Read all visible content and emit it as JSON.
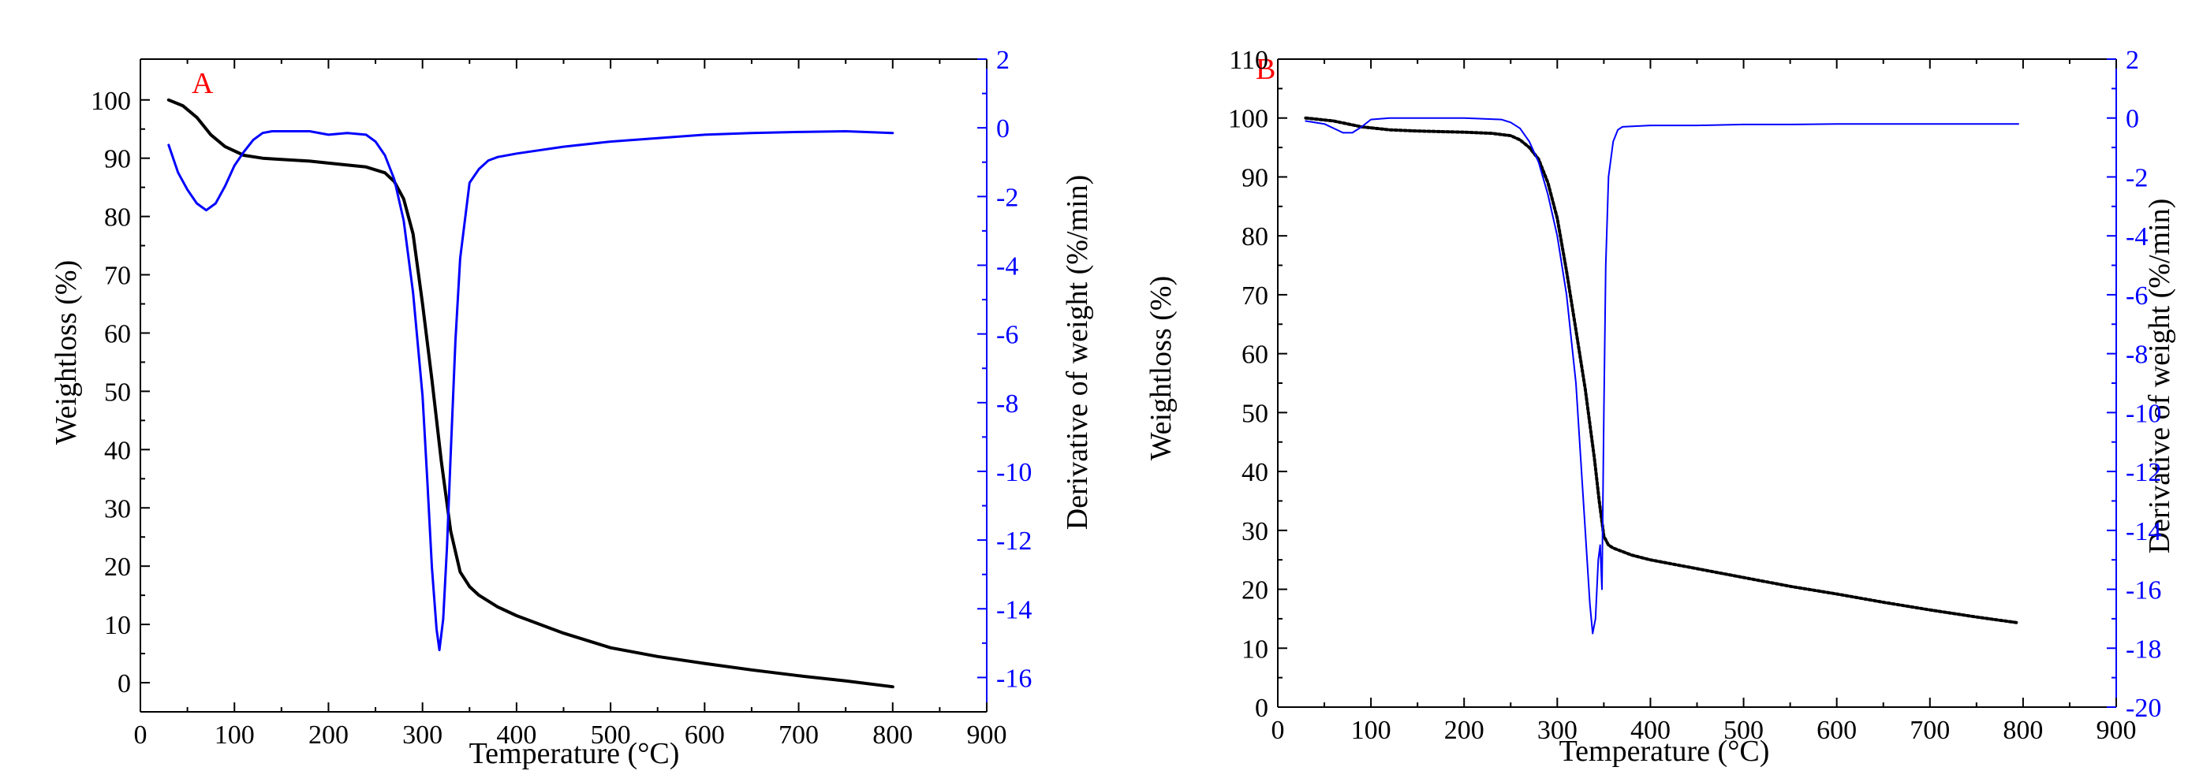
{
  "chart_data": [
    {
      "panel": "A",
      "type": "line",
      "xlabel": "Temperature (°C)",
      "ylabel": "Weightloss (%)",
      "y2label": "Derivative of weight (%/min)",
      "xlim": [
        0,
        900
      ],
      "ylim": [
        -5,
        107
      ],
      "y2lim": [
        -17,
        2
      ],
      "xticks": [
        0,
        100,
        200,
        300,
        400,
        500,
        600,
        700,
        800,
        900
      ],
      "yticks": [
        0,
        10,
        20,
        30,
        40,
        50,
        60,
        70,
        80,
        90,
        100
      ],
      "y2ticks": [
        2,
        0,
        -2,
        -4,
        -6,
        -8,
        -10,
        -12,
        -14,
        -16
      ],
      "colors": {
        "weight": "#000000",
        "derivative": "#0000ff",
        "letter": "#ff0000"
      },
      "series": [
        {
          "name": "Weightloss (%)",
          "axis": "left",
          "x": [
            30,
            45,
            60,
            75,
            90,
            110,
            130,
            150,
            180,
            210,
            240,
            260,
            270,
            280,
            290,
            300,
            310,
            320,
            330,
            340,
            350,
            360,
            380,
            400,
            450,
            500,
            550,
            600,
            650,
            700,
            750,
            800
          ],
          "y": [
            100,
            99,
            97,
            94,
            92,
            90.5,
            90,
            89.8,
            89.5,
            89,
            88.5,
            87.5,
            86,
            83,
            77,
            65,
            52,
            38,
            26,
            19,
            16.5,
            15,
            13,
            11.5,
            8.5,
            6,
            4.5,
            3.3,
            2.2,
            1.2,
            0.3,
            -0.7
          ]
        },
        {
          "name": "Derivative of weight (%/min)",
          "axis": "right",
          "x": [
            30,
            40,
            50,
            60,
            70,
            80,
            90,
            100,
            110,
            120,
            130,
            140,
            160,
            180,
            200,
            220,
            240,
            250,
            260,
            270,
            280,
            290,
            300,
            305,
            310,
            315,
            318,
            322,
            326,
            330,
            335,
            340,
            350,
            360,
            370,
            380,
            400,
            450,
            500,
            550,
            600,
            650,
            700,
            750,
            800
          ],
          "y": [
            -0.5,
            -1.3,
            -1.8,
            -2.2,
            -2.4,
            -2.2,
            -1.7,
            -1.1,
            -0.7,
            -0.35,
            -0.15,
            -0.1,
            -0.1,
            -0.1,
            -0.2,
            -0.15,
            -0.2,
            -0.4,
            -0.8,
            -1.5,
            -2.7,
            -4.8,
            -7.8,
            -10.2,
            -12.8,
            -14.6,
            -15.2,
            -14.3,
            -12.2,
            -9.5,
            -6.2,
            -3.8,
            -1.6,
            -1.2,
            -0.95,
            -0.85,
            -0.75,
            -0.55,
            -0.4,
            -0.3,
            -0.2,
            -0.15,
            -0.12,
            -0.1,
            -0.15
          ]
        }
      ]
    },
    {
      "panel": "B",
      "type": "line",
      "xlabel": "Temperature (°C)",
      "ylabel": "Weightloss (%)",
      "y2label": "Derivative of weight (%/min)",
      "xlim": [
        0,
        900
      ],
      "ylim": [
        0,
        110
      ],
      "y2lim": [
        -20,
        2
      ],
      "xticks": [
        0,
        100,
        200,
        300,
        400,
        500,
        600,
        700,
        800,
        900
      ],
      "yticks": [
        0,
        10,
        20,
        30,
        40,
        50,
        60,
        70,
        80,
        90,
        100,
        110
      ],
      "y2ticks": [
        2,
        0,
        -2,
        -4,
        -6,
        -8,
        -10,
        -12,
        -14,
        -16,
        -18,
        -20
      ],
      "colors": {
        "weight": "#000000",
        "derivative": "#0000ff",
        "letter": "#ff0000"
      },
      "series": [
        {
          "name": "Weightloss (%)",
          "axis": "left",
          "x": [
            30,
            60,
            90,
            120,
            150,
            200,
            230,
            250,
            260,
            270,
            280,
            290,
            300,
            310,
            320,
            330,
            340,
            345,
            350,
            355,
            360,
            380,
            400,
            450,
            500,
            550,
            600,
            650,
            700,
            750,
            795
          ],
          "y": [
            100,
            99.5,
            98.5,
            98,
            97.8,
            97.6,
            97.4,
            97,
            96.3,
            95,
            93,
            89,
            83,
            74,
            64,
            54,
            42,
            35,
            29,
            27.5,
            27,
            25.8,
            25,
            23.5,
            22,
            20.5,
            19.2,
            17.8,
            16.5,
            15.3,
            14.3
          ]
        },
        {
          "name": "Derivative of weight (%/min)",
          "axis": "right",
          "x": [
            30,
            50,
            70,
            80,
            90,
            100,
            120,
            150,
            200,
            240,
            250,
            260,
            270,
            280,
            290,
            300,
            310,
            320,
            325,
            330,
            335,
            338,
            341,
            344,
            346,
            348,
            350,
            352,
            355,
            360,
            365,
            370,
            400,
            450,
            500,
            550,
            600,
            650,
            700,
            750,
            795
          ],
          "y": [
            -0.1,
            -0.2,
            -0.5,
            -0.5,
            -0.3,
            -0.05,
            0,
            0,
            0,
            -0.05,
            -0.15,
            -0.35,
            -0.8,
            -1.5,
            -2.6,
            -4.0,
            -6.0,
            -9.0,
            -11.5,
            -14.0,
            -16.5,
            -17.5,
            -17.0,
            -15.0,
            -14.5,
            -16.0,
            -10.0,
            -5.0,
            -2.0,
            -0.8,
            -0.4,
            -0.3,
            -0.25,
            -0.25,
            -0.22,
            -0.22,
            -0.2,
            -0.2,
            -0.2,
            -0.2,
            -0.2
          ]
        }
      ]
    }
  ]
}
